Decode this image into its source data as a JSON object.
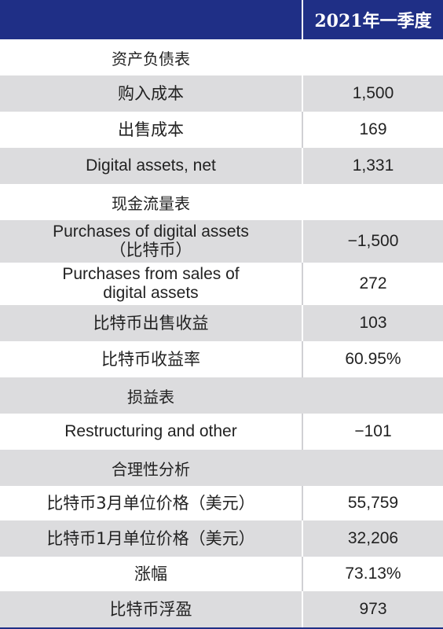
{
  "header": {
    "period": "2021年一季度"
  },
  "sections": [
    {
      "title": "资产负债表"
    },
    {
      "title": "现金流量表"
    },
    {
      "title": "损益表"
    },
    {
      "title": "合理性分析"
    }
  ],
  "rows": [
    {
      "label": "购入成本",
      "value": "1,500"
    },
    {
      "label": "出售成本",
      "value": "169"
    },
    {
      "label": "Digital assets, net",
      "value": "1,331"
    },
    {
      "label": "Purchases of digital assets\n（比特币）",
      "value": "−1,500"
    },
    {
      "label": "Purchases from sales of\ndigital assets",
      "value": "272"
    },
    {
      "label": "比特币出售收益",
      "value": "103"
    },
    {
      "label": "比特币收益率",
      "value": "60.95%"
    },
    {
      "label": "Restructuring and other",
      "value": "−101"
    },
    {
      "label": "比特币3月单位价格（美元）",
      "value": "55,759"
    },
    {
      "label": "比特币1月单位价格（美元）",
      "value": "32,206"
    },
    {
      "label": "涨幅",
      "value": "73.13%"
    },
    {
      "label": "比特币浮盈",
      "value": "973"
    }
  ],
  "colors": {
    "header_bg": "#1f2f86",
    "gray_row": "#dcdcde"
  }
}
